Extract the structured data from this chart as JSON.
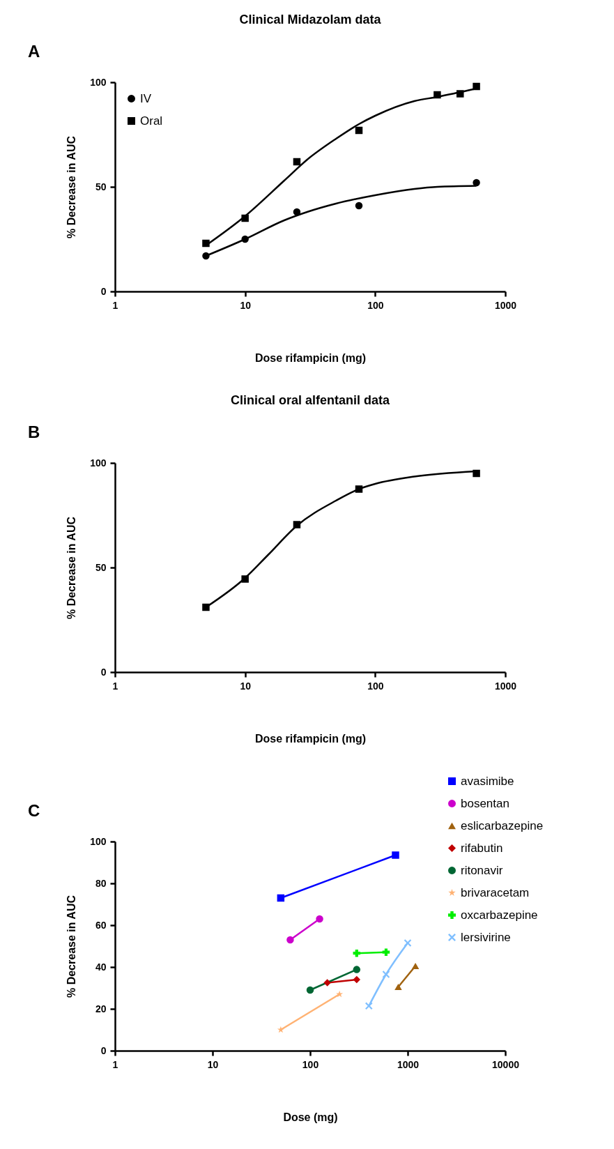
{
  "chart_data": [
    {
      "type": "scatter",
      "title": "Clinical Midazolam data",
      "xlabel": "Dose rifampicin (mg)",
      "ylabel": "% Decrease in AUC",
      "annotations": [
        "A"
      ],
      "log": "x",
      "xlim": [
        1,
        1000
      ],
      "xticks": [
        1,
        10,
        100,
        1000
      ],
      "ylim": [
        0,
        100
      ],
      "yticks": [
        0,
        50,
        100
      ],
      "legend": "top left",
      "series": [
        {
          "name": "IV",
          "marker": "circle",
          "color": "#000000",
          "x": [
            5,
            10,
            25,
            75,
            600
          ],
          "values": [
            17,
            25,
            38,
            41,
            52
          ]
        },
        {
          "name": "Oral",
          "marker": "square",
          "color": "#000000",
          "x": [
            5,
            10,
            25,
            75,
            300,
            450,
            600
          ],
          "values": [
            23,
            35,
            62,
            77,
            94,
            94.5,
            98
          ]
        },
        {
          "type": "line",
          "marker": "none",
          "color": "#000000",
          "x": [
            5,
            10,
            20,
            30,
            50,
            100,
            200,
            300,
            600
          ],
          "values": [
            17,
            25,
            34,
            38,
            42,
            46,
            49,
            50,
            50.5
          ]
        },
        {
          "type": "line",
          "marker": "none",
          "color": "#000000",
          "x": [
            5,
            10,
            20,
            30,
            50,
            75,
            100,
            200,
            300,
            600
          ],
          "values": [
            22,
            36,
            53,
            63,
            73,
            80,
            84,
            91,
            93,
            97
          ]
        }
      ]
    },
    {
      "type": "scatter",
      "title": "Clinical oral alfentanil data",
      "xlabel": "Dose rifampicin (mg)",
      "ylabel": "% Decrease in AUC",
      "annotations": [
        "B"
      ],
      "log": "x",
      "xlim": [
        1,
        1000
      ],
      "xticks": [
        1,
        10,
        100,
        1000
      ],
      "ylim": [
        0,
        100
      ],
      "yticks": [
        0,
        50,
        100
      ],
      "series": [
        {
          "marker": "square",
          "color": "#000000",
          "x": [
            5,
            10,
            25,
            75,
            600
          ],
          "values": [
            31,
            44.5,
            70.5,
            87.5,
            95
          ]
        },
        {
          "type": "line",
          "marker": "none",
          "color": "#000000",
          "x": [
            5,
            10,
            15,
            25,
            50,
            75,
            100,
            200,
            600
          ],
          "values": [
            31,
            45,
            56,
            70,
            82,
            87.5,
            90,
            93.5,
            96
          ]
        }
      ]
    },
    {
      "type": "line",
      "xlabel": "Dose (mg)",
      "ylabel": "% Decrease in AUC",
      "annotations": [
        "C"
      ],
      "log": "x",
      "xlim": [
        1,
        10000
      ],
      "xticks": [
        1,
        10,
        100,
        1000,
        10000
      ],
      "ylim": [
        0,
        100
      ],
      "yticks": [
        0,
        20,
        40,
        60,
        80,
        100
      ],
      "legend": "right",
      "series": [
        {
          "name": "avasimibe",
          "marker": "square",
          "color": "#0000ff",
          "x": [
            50,
            750
          ],
          "values": [
            73,
            93.5
          ]
        },
        {
          "name": "bosentan",
          "marker": "circle",
          "color": "#cc00cc",
          "x": [
            62.5,
            125
          ],
          "values": [
            53,
            63
          ]
        },
        {
          "name": "eslicarbazepine",
          "marker": "triangle",
          "color": "#a0620f",
          "x": [
            800,
            1200
          ],
          "values": [
            30.5,
            40.5
          ]
        },
        {
          "name": "rifabutin",
          "marker": "diamond",
          "color": "#c00000",
          "x": [
            150,
            300
          ],
          "values": [
            32.5,
            34
          ]
        },
        {
          "name": "ritonavir",
          "marker": "circle",
          "color": "#006633",
          "x": [
            100,
            300
          ],
          "values": [
            29,
            38.8
          ]
        },
        {
          "name": "brivaracetam",
          "marker": "star",
          "color": "#ffb273",
          "x": [
            50,
            200
          ],
          "values": [
            10,
            27
          ]
        },
        {
          "name": "oxcarbazepine",
          "marker": "cross",
          "color": "#00ee00",
          "x": [
            300,
            600
          ],
          "values": [
            46.6,
            47.1
          ]
        },
        {
          "name": "lersivirine",
          "marker": "x",
          "color": "#7fbfff",
          "x": [
            400,
            600,
            1000
          ],
          "values": [
            21.4,
            36.5,
            51.5
          ]
        }
      ]
    }
  ]
}
